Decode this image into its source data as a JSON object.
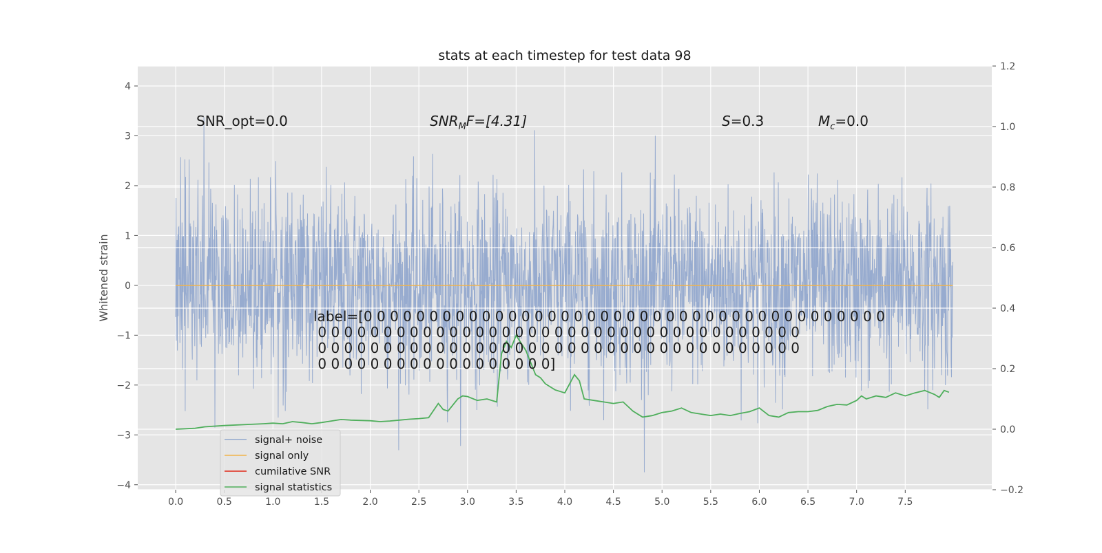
{
  "chart_data": {
    "type": "line",
    "title": "stats at each timestep for test data 98",
    "ylabel": "Whitened strain",
    "xlabel": "",
    "xlim": [
      -0.39,
      8.39
    ],
    "ylim": [
      -4.1,
      4.4
    ],
    "y2lim": [
      -0.2,
      1.2
    ],
    "grid": true,
    "legend_position": "lower-left",
    "x_ticks": [
      "0.0",
      "0.5",
      "1.0",
      "1.5",
      "2.0",
      "2.5",
      "3.0",
      "3.5",
      "4.0",
      "4.5",
      "5.0",
      "5.5",
      "6.0",
      "6.5",
      "7.0",
      "7.5"
    ],
    "y_ticks": [
      "4",
      "3",
      "2",
      "1",
      "0",
      "−1",
      "−2",
      "−3",
      "−4"
    ],
    "y2_ticks": [
      "1.2",
      "1.0",
      "0.8",
      "0.6",
      "0.4",
      "0.2",
      "0.0",
      "−0.2"
    ],
    "annotations": {
      "snr_opt": "SNR_opt=0.0",
      "snr_mf_main": "SNR",
      "snr_mf_sub": "M",
      "snr_mf_rest": "F=[4.31]",
      "s_italic": "S",
      "s_rest": "=0.3",
      "mc_main": "M",
      "mc_sub": "c",
      "mc_rest": "=0.0",
      "label_lines": [
        "label=[0 0 0 0 0 0 0 0 0 0 0 0 0 0 0 0 0 0 0 0 0 0 0 0 0 0 0 0 0 0 0 0 0 0 0 0 0 0 0 0",
        " 0 0 0 0 0 0 0 0 0 0 0 0 0 0 0 0 0 0 0 0 0 0 0 0 0 0 0 0 0 0 0 0 0 0 0 0 0",
        " 0 0 0 0 0 0 0 0 0 0 0 0 0 0 0 0 0 0 0 0 0 0 0 0 0 0 0 0 0 0 0 0 0 0 0 0 0",
        " 0 0 0 0 0 0 0 0 0 0 0 0 0 0 0 0 0 0]"
      ]
    },
    "series": [
      {
        "name": "signal+ noise",
        "color": "#92a8cd",
        "axis": "left",
        "x_range": [
          0.0,
          7.99
        ],
        "y_range_observed": [
          -3.75,
          3.98
        ],
        "description_values": "whitened noise, approx. unit std"
      },
      {
        "name": "signal only",
        "color": "#f2b34a",
        "axis": "left",
        "x": [
          0.0,
          7.99
        ],
        "y": [
          0.0,
          0.0
        ]
      },
      {
        "name": "cumilative SNR",
        "color": "#e02a1a",
        "axis": "right",
        "x": [],
        "y": []
      },
      {
        "name": "signal statistics",
        "color": "#4eae5b",
        "axis": "right",
        "x": [
          0.0,
          0.2,
          0.3,
          0.5,
          0.7,
          0.9,
          1.0,
          1.1,
          1.2,
          1.3,
          1.4,
          1.5,
          1.6,
          1.7,
          1.8,
          2.0,
          2.1,
          2.2,
          2.3,
          2.4,
          2.5,
          2.6,
          2.7,
          2.75,
          2.8,
          2.9,
          2.95,
          3.0,
          3.1,
          3.2,
          3.3,
          3.35,
          3.4,
          3.45,
          3.5,
          3.6,
          3.7,
          3.75,
          3.8,
          3.9,
          4.0,
          4.1,
          4.15,
          4.2,
          4.3,
          4.4,
          4.5,
          4.6,
          4.65,
          4.7,
          4.8,
          4.9,
          5.0,
          5.1,
          5.2,
          5.3,
          5.4,
          5.5,
          5.6,
          5.7,
          5.8,
          5.9,
          6.0,
          6.1,
          6.2,
          6.3,
          6.4,
          6.5,
          6.6,
          6.7,
          6.8,
          6.9,
          7.0,
          7.05,
          7.1,
          7.2,
          7.3,
          7.4,
          7.5,
          7.6,
          7.7,
          7.8,
          7.85,
          7.9,
          7.95
        ],
        "y": [
          0.0,
          0.003,
          0.008,
          0.012,
          0.015,
          0.018,
          0.02,
          0.018,
          0.025,
          0.022,
          0.018,
          0.022,
          0.027,
          0.032,
          0.03,
          0.028,
          0.025,
          0.027,
          0.03,
          0.033,
          0.035,
          0.038,
          0.085,
          0.065,
          0.06,
          0.1,
          0.11,
          0.108,
          0.095,
          0.1,
          0.09,
          0.25,
          0.29,
          0.27,
          0.31,
          0.26,
          0.18,
          0.17,
          0.15,
          0.13,
          0.12,
          0.18,
          0.16,
          0.1,
          0.095,
          0.09,
          0.085,
          0.09,
          0.075,
          0.06,
          0.04,
          0.045,
          0.055,
          0.06,
          0.07,
          0.055,
          0.05,
          0.045,
          0.05,
          0.045,
          0.052,
          0.058,
          0.07,
          0.045,
          0.04,
          0.055,
          0.058,
          0.058,
          0.062,
          0.075,
          0.082,
          0.08,
          0.095,
          0.11,
          0.1,
          0.11,
          0.105,
          0.12,
          0.11,
          0.12,
          0.128,
          0.115,
          0.105,
          0.128,
          0.122
        ]
      }
    ]
  }
}
